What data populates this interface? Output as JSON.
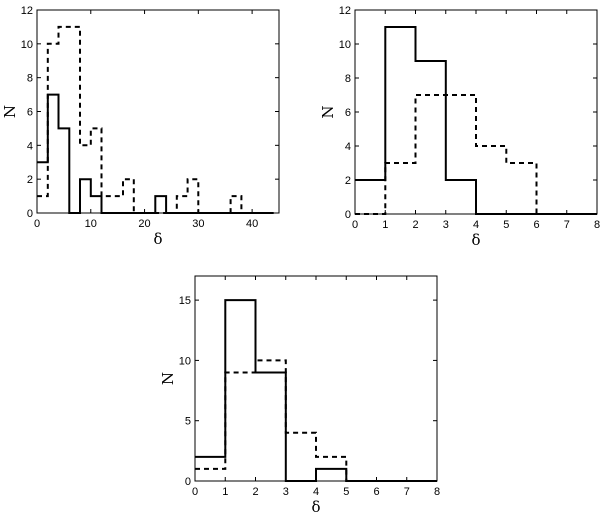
{
  "chart_data": [
    {
      "type": "histogram",
      "xlabel": "δ",
      "ylabel": "N",
      "xlim": [
        0,
        45
      ],
      "ylim": [
        0,
        12
      ],
      "xticks": [
        0,
        10,
        20,
        30,
        40
      ],
      "yticks": [
        0,
        2,
        4,
        6,
        8,
        10,
        12
      ],
      "grid": false,
      "series": [
        {
          "style": "solid",
          "edges": [
            0,
            2,
            4,
            6,
            8,
            10,
            12,
            14,
            16,
            18,
            20,
            22,
            24,
            26,
            28,
            30,
            32,
            34,
            36,
            38,
            40,
            42,
            44
          ],
          "counts": [
            3,
            7,
            5,
            0,
            2,
            1,
            0,
            0,
            0,
            0,
            0,
            1,
            0,
            0,
            0,
            0,
            0,
            0,
            0,
            0,
            0,
            0
          ]
        },
        {
          "style": "dashed",
          "edges": [
            0,
            2,
            4,
            6,
            8,
            10,
            12,
            14,
            16,
            18,
            20,
            22,
            24,
            26,
            28,
            30,
            32,
            34,
            36,
            38,
            40,
            42,
            44
          ],
          "counts": [
            1,
            10,
            11,
            11,
            4,
            5,
            1,
            1,
            2,
            0,
            0,
            0,
            0,
            1,
            2,
            0,
            0,
            0,
            1,
            0,
            0,
            0
          ]
        }
      ]
    },
    {
      "type": "histogram",
      "xlabel": "δ",
      "ylabel": "N",
      "xlim": [
        0,
        8
      ],
      "ylim": [
        0,
        12
      ],
      "xticks": [
        0,
        1,
        2,
        3,
        4,
        5,
        6,
        7,
        8
      ],
      "yticks": [
        0,
        2,
        4,
        6,
        8,
        10,
        12
      ],
      "grid": false,
      "series": [
        {
          "style": "solid",
          "edges": [
            0,
            1,
            2,
            3,
            4,
            5,
            6,
            7,
            8
          ],
          "counts": [
            2,
            11,
            9,
            2,
            0,
            0,
            0,
            0
          ]
        },
        {
          "style": "dashed",
          "edges": [
            0,
            1,
            2,
            3,
            4,
            5,
            6,
            7,
            8
          ],
          "counts": [
            0,
            3,
            7,
            7,
            4,
            3,
            0,
            0
          ]
        }
      ]
    },
    {
      "type": "histogram",
      "xlabel": "δ",
      "ylabel": "N",
      "xlim": [
        0,
        8
      ],
      "ylim": [
        0,
        17
      ],
      "xticks": [
        0,
        1,
        2,
        3,
        4,
        5,
        6,
        7,
        8
      ],
      "yticks": [
        0,
        5,
        10,
        15
      ],
      "grid": false,
      "series": [
        {
          "style": "solid",
          "edges": [
            0,
            1,
            2,
            3,
            4,
            5,
            6,
            7,
            8
          ],
          "counts": [
            2,
            15,
            9,
            0,
            1,
            0,
            0,
            0
          ]
        },
        {
          "style": "dashed",
          "edges": [
            0,
            1,
            2,
            3,
            4,
            5,
            6,
            7,
            8
          ],
          "counts": [
            1,
            9,
            10,
            4,
            2,
            0,
            0,
            0
          ]
        }
      ]
    }
  ]
}
